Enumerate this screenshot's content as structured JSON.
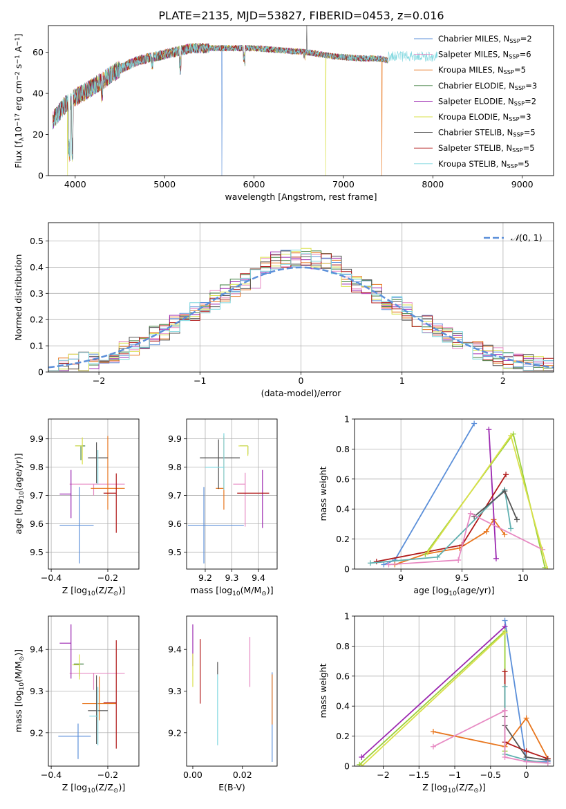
{
  "title": "PLATE=2135, MJD=53827, FIBERID=0453, z=0.016",
  "colors": {
    "Chabrier MILES": "#5b8fd9",
    "Salpeter MILES": "#e78ac3",
    "Kroupa MILES": "#e8761e",
    "Chabrier ELODIE": "#3f7d3f",
    "Salpeter ELODIE": "#9b27b0",
    "Kroupa ELODIE": "#d9e04a",
    "Chabrier STELIB": "#555555",
    "Salpeter STELIB": "#b01818",
    "Kroupa STELIB": "#7fd7df",
    "mass_weight_lines": [
      "#5b8fd9",
      "#e8761e",
      "#9b27b0",
      "#9bd13a",
      "#b01818",
      "#5fb0b0",
      "#555555",
      "#e78ac3",
      "#d9e04a"
    ]
  },
  "legend1": [
    "Chabrier MILES, N$_{SSP}$=2",
    "Salpeter MILES, N$_{SSP}$=6",
    "Kroupa MILES, N$_{SSP}$=5",
    "Chabrier ELODIE, N$_{SSP}$=3",
    "Salpeter ELODIE, N$_{SSP}$=2",
    "Kroupa ELODIE, N$_{SSP}$=3",
    "Chabrier STELIB, N$_{SSP}$=5",
    "Salpeter STELIB, N$_{SSP}$=5",
    "Kroupa STELIB, N$_{SSP}$=5"
  ],
  "chart_data": [
    {
      "id": "spectrum",
      "type": "line",
      "xlabel": "wavelength [Angstrom, rest frame]",
      "ylabel": "Flux [f$_\\lambda$10$^{-17}$ erg cm$^{-2}$ s$^{-1}$ A$^{-1}$]",
      "xlim": [
        3700,
        9350
      ],
      "ylim": [
        0,
        73
      ],
      "xticks": [
        4000,
        5000,
        6000,
        7000,
        8000,
        9000
      ],
      "yticks": [
        0,
        20,
        40,
        60
      ],
      "continuum": [
        [
          3750,
          27
        ],
        [
          3900,
          35
        ],
        [
          4000,
          38
        ],
        [
          4150,
          42
        ],
        [
          4300,
          46
        ],
        [
          4500,
          52
        ],
        [
          4700,
          56
        ],
        [
          5000,
          59
        ],
        [
          5300,
          62
        ],
        [
          5600,
          62
        ],
        [
          6000,
          62
        ],
        [
          6300,
          61
        ],
        [
          6600,
          60
        ],
        [
          6900,
          58
        ],
        [
          7200,
          57
        ],
        [
          7400,
          57
        ],
        [
          7500,
          56
        ]
      ],
      "dips": [
        [
          3933,
          10
        ],
        [
          3968,
          10
        ],
        [
          4300,
          38
        ],
        [
          4861,
          52
        ],
        [
          5175,
          50
        ],
        [
          5890,
          54
        ],
        [
          6563,
          57
        ]
      ],
      "spikes": [
        {
          "series": "Chabrier MILES",
          "x": 5640,
          "y": 0
        },
        {
          "series": "Kroupa MILES",
          "x": 7430,
          "y": 0
        },
        {
          "series": "Kroupa ELODIE",
          "x": 6800,
          "y": 0
        },
        {
          "series": "Kroupa ELODIE",
          "x": 3915,
          "y": 0
        },
        {
          "series": "Chabrier STELIB",
          "x": 6590,
          "y": 73
        }
      ],
      "tail": {
        "series": "Kroupa STELIB",
        "from": 7500,
        "to": 8050
      },
      "grid": false,
      "legend_position": "top-right"
    },
    {
      "id": "residuals",
      "type": "histogram",
      "xlabel": "(data-model)/error",
      "ylabel": "Normed distribution",
      "xlim": [
        -2.5,
        2.5
      ],
      "ylim": [
        0,
        0.57
      ],
      "xticks": [
        -2,
        -1,
        0,
        1,
        2
      ],
      "yticks": [
        0.0,
        0.1,
        0.2,
        0.3,
        0.4,
        0.5
      ],
      "bin_width": 0.1,
      "gaussian_label": "$\\mathcal{N}(0,1)$",
      "gaussian_color": "#5b8fd9",
      "grid": true,
      "legend_position": "top-right"
    },
    {
      "id": "age-vs-Z",
      "type": "errorbar",
      "xlabel": "Z [log$_{10}$(Z/Z$_\\odot$)]",
      "ylabel": "age  [log$_{10}$(age/yr)]",
      "xlim": [
        -0.41,
        -0.09
      ],
      "ylim": [
        9.44,
        9.97
      ],
      "xticks": [
        -0.4,
        -0.2
      ],
      "yticks": [
        9.5,
        9.6,
        9.7,
        9.8,
        9.9
      ],
      "grid": true,
      "points": [
        {
          "series": "Chabrier MILES",
          "x": -0.3,
          "xerr": [
            0.07,
            0.05
          ],
          "y": 9.595,
          "yerr": [
            0.135,
            0.135
          ]
        },
        {
          "series": "Salpeter MILES",
          "x": -0.25,
          "xerr": [
            0.085,
            0.11
          ],
          "y": 9.74,
          "yerr": [
            0.04,
            0.0
          ]
        },
        {
          "series": "Kroupa MILES",
          "x": -0.2,
          "xerr": [
            0.06,
            0.06
          ],
          "y": 9.725,
          "yerr": [
            0.075,
            0.185
          ]
        },
        {
          "series": "Chabrier ELODIE",
          "x": -0.295,
          "xerr": [
            0.02,
            0.015
          ],
          "y": 9.875,
          "yerr": [
            0.05,
            0.0
          ]
        },
        {
          "series": "Salpeter ELODIE",
          "x": -0.33,
          "xerr": [
            0.04,
            0.0
          ],
          "y": 9.705,
          "yerr": [
            0.085,
            0.085
          ]
        },
        {
          "series": "Kroupa ELODIE",
          "x": -0.29,
          "xerr": [
            0.025,
            0.0
          ],
          "y": 9.875,
          "yerr": [
            0.065,
            0.03
          ]
        },
        {
          "series": "Chabrier STELIB",
          "x": -0.24,
          "xerr": [
            0.03,
            0.04
          ],
          "y": 9.833,
          "yerr": [
            0.09,
            0.055
          ]
        },
        {
          "series": "Salpeter STELIB",
          "x": -0.17,
          "xerr": [
            0.045,
            0.0
          ],
          "y": 9.708,
          "yerr": [
            0.14,
            0.07
          ]
        },
        {
          "series": "Kroupa STELIB",
          "x": -0.235,
          "xerr": [
            0.0,
            0.0
          ],
          "y": 9.8,
          "yerr": [
            0.06,
            0.06
          ]
        }
      ]
    },
    {
      "id": "age-vs-mass",
      "type": "errorbar",
      "xlabel": "mass [log$_{10}$(M/M$_\\odot$)]",
      "ylabel": "",
      "xlim": [
        9.13,
        9.47
      ],
      "ylim": [
        9.44,
        9.97
      ],
      "xticks": [
        9.2,
        9.3,
        9.4
      ],
      "yticks": [
        9.5,
        9.6,
        9.7,
        9.8,
        9.9
      ],
      "grid": true,
      "points": [
        {
          "series": "Chabrier MILES",
          "x": 9.195,
          "xerr": [
            0.06,
            0.15
          ],
          "y": 9.595,
          "yerr": [
            0.135,
            0.135
          ]
        },
        {
          "series": "Salpeter MILES",
          "x": 9.35,
          "xerr": [
            0.045,
            0.0
          ],
          "y": 9.74,
          "yerr": [
            0.15,
            0.04
          ]
        },
        {
          "series": "Kroupa MILES",
          "x": 9.27,
          "xerr": [
            0.03,
            0.0
          ],
          "y": 9.725,
          "yerr": [
            0.075,
            0.185
          ]
        },
        {
          "series": "Chabrier ELODIE",
          "x": 9.36,
          "xerr": [
            0.03,
            0.0
          ],
          "y": 9.875,
          "yerr": [
            0.03,
            0.0
          ]
        },
        {
          "series": "Salpeter ELODIE",
          "x": 9.415,
          "xerr": [
            0.0,
            0.0
          ],
          "y": 9.705,
          "yerr": [
            0.12,
            0.085
          ]
        },
        {
          "series": "Kroupa ELODIE",
          "x": 9.36,
          "xerr": [
            0.035,
            0.0
          ],
          "y": 9.875,
          "yerr": [
            0.035,
            0.0
          ]
        },
        {
          "series": "Chabrier STELIB",
          "x": 9.25,
          "xerr": [
            0.07,
            0.08
          ],
          "y": 9.833,
          "yerr": [
            0.11,
            0.065
          ]
        },
        {
          "series": "Salpeter STELIB",
          "x": 9.37,
          "xerr": [
            0.05,
            0.07
          ],
          "y": 9.708,
          "yerr": [
            0.0,
            0.0
          ]
        },
        {
          "series": "Kroupa STELIB",
          "x": 9.27,
          "xerr": [
            0.07,
            0.0
          ],
          "y": 9.8,
          "yerr": [
            0.08,
            0.12
          ]
        }
      ]
    },
    {
      "id": "weight-vs-age",
      "type": "line",
      "xlabel": "age  [log$_{10}$(age/yr)]",
      "ylabel": "mass weight",
      "xlim": [
        8.62,
        10.25
      ],
      "ylim": [
        0,
        1.0
      ],
      "xticks": [
        9.0,
        9.5,
        10.0
      ],
      "yticks": [
        0.0,
        0.2,
        0.4,
        0.6,
        0.8,
        1.0
      ],
      "grid": true,
      "series": [
        {
          "points": [
            [
              8.86,
              0.03
            ],
            [
              8.95,
              0.06
            ],
            [
              9.6,
              0.97
            ]
          ]
        },
        {
          "points": [
            [
              8.95,
              0.03
            ],
            [
              9.2,
              0.1
            ],
            [
              9.48,
              0.14
            ],
            [
              9.7,
              0.25
            ],
            [
              9.76,
              0.33
            ],
            [
              9.85,
              0.23
            ]
          ]
        },
        {
          "points": [
            [
              9.72,
              0.93
            ],
            [
              9.78,
              0.07
            ]
          ]
        },
        {
          "points": [
            [
              9.2,
              0.1
            ],
            [
              9.92,
              0.9
            ],
            [
              10.18,
              0.01
            ]
          ]
        },
        {
          "points": [
            [
              8.8,
              0.05
            ],
            [
              9.5,
              0.16
            ],
            [
              9.86,
              0.63
            ]
          ]
        },
        {
          "points": [
            [
              8.75,
              0.04
            ],
            [
              9.3,
              0.08
            ],
            [
              9.85,
              0.53
            ],
            [
              9.9,
              0.27
            ]
          ]
        },
        {
          "points": [
            [
              9.6,
              0.35
            ],
            [
              9.85,
              0.52
            ],
            [
              9.95,
              0.33
            ]
          ]
        },
        {
          "points": [
            [
              8.9,
              0.03
            ],
            [
              9.47,
              0.06
            ],
            [
              9.57,
              0.37
            ],
            [
              10.16,
              0.13
            ]
          ]
        },
        {
          "points": [
            [
              9.22,
              0.11
            ],
            [
              9.9,
              0.89
            ],
            [
              10.2,
              0.0
            ]
          ]
        }
      ]
    },
    {
      "id": "mass-vs-Z",
      "type": "errorbar",
      "xlabel": "Z [log$_{10}$(Z/Z$_\\odot$)]",
      "ylabel": "mass [log$_{10}$(M/M$_\\odot$)]",
      "xlim": [
        -0.41,
        -0.09
      ],
      "ylim": [
        9.12,
        9.48
      ],
      "xticks": [
        -0.4,
        -0.2
      ],
      "yticks": [
        9.2,
        9.3,
        9.4
      ],
      "grid": true,
      "points": [
        {
          "series": "Chabrier MILES",
          "x": -0.305,
          "xerr": [
            0.07,
            0.045
          ],
          "y": 9.192,
          "yerr": [
            0.055,
            0.03
          ]
        },
        {
          "series": "Salpeter MILES",
          "x": -0.25,
          "xerr": [
            0.085,
            0.11
          ],
          "y": 9.343,
          "yerr": [
            0.04,
            0.0
          ]
        },
        {
          "series": "Kroupa MILES",
          "x": -0.23,
          "xerr": [
            0.06,
            0.06
          ],
          "y": 9.27,
          "yerr": [
            0.04,
            0.065
          ]
        },
        {
          "series": "Chabrier ELODIE",
          "x": -0.3,
          "xerr": [
            0.02,
            0.015
          ],
          "y": 9.365,
          "yerr": [
            0.03,
            0.0
          ]
        },
        {
          "series": "Salpeter ELODIE",
          "x": -0.33,
          "xerr": [
            0.04,
            0.0
          ],
          "y": 9.415,
          "yerr": [
            0.085,
            0.045
          ]
        },
        {
          "series": "Kroupa ELODIE",
          "x": -0.3,
          "xerr": [
            0.025,
            0.0
          ],
          "y": 9.363,
          "yerr": [
            0.035,
            0.025
          ]
        },
        {
          "series": "Chabrier STELIB",
          "x": -0.24,
          "xerr": [
            0.03,
            0.04
          ],
          "y": 9.253,
          "yerr": [
            0.08,
            0.085
          ]
        },
        {
          "series": "Salpeter STELIB",
          "x": -0.17,
          "xerr": [
            0.045,
            0.0
          ],
          "y": 9.272,
          "yerr": [
            0.11,
            0.15
          ]
        },
        {
          "series": "Kroupa STELIB",
          "x": -0.235,
          "xerr": [
            0.03,
            0.0
          ],
          "y": 9.24,
          "yerr": [
            0.07,
            0.07
          ]
        }
      ]
    },
    {
      "id": "mass-vs-ebv",
      "type": "errorbar",
      "xlabel": "E(B-V)",
      "ylabel": "",
      "xlim": [
        -0.0025,
        0.034
      ],
      "ylim": [
        9.12,
        9.48
      ],
      "xticks": [
        0.0,
        0.02
      ],
      "xticklabels": [
        "0.00",
        "0.02"
      ],
      "yticks": [
        9.2,
        9.3,
        9.4
      ],
      "grid": false,
      "points": [
        {
          "series": "Chabrier MILES",
          "x": 0.032,
          "y": 9.22,
          "yerr": [
            0.09,
            0.125
          ]
        },
        {
          "series": "Salpeter MILES",
          "x": 0.023,
          "y": 9.37,
          "yerr": [
            0.06,
            0.06
          ]
        },
        {
          "series": "Kroupa MILES",
          "x": 0.032,
          "y": 9.28,
          "yerr": [
            0.06,
            0.06
          ]
        },
        {
          "series": "Salpeter ELODIE",
          "x": 0.0,
          "y": 9.41,
          "yerr": [
            0.05,
            0.05
          ]
        },
        {
          "series": "Kroupa ELODIE",
          "x": 0.0,
          "y": 9.35,
          "yerr": [
            0.04,
            0.04
          ]
        },
        {
          "series": "Chabrier STELIB",
          "x": 0.01,
          "y": 9.34,
          "yerr": [
            0.0,
            0.03
          ]
        },
        {
          "series": "Salpeter STELIB",
          "x": 0.003,
          "y": 9.35,
          "yerr": [
            0.08,
            0.075
          ]
        },
        {
          "series": "Kroupa STELIB",
          "x": 0.01,
          "y": 9.26,
          "yerr": [
            0.09,
            0.08
          ]
        }
      ]
    },
    {
      "id": "weight-vs-Z",
      "type": "line",
      "xlabel": "Z [log$_{10}$(Z/Z$_\\odot$)]",
      "ylabel": "mass weight",
      "xlim": [
        -2.4,
        0.38
      ],
      "ylim": [
        0,
        1.0
      ],
      "xticks": [
        -2.0,
        -1.5,
        -1.0,
        -0.5,
        0.0
      ],
      "yticks": [
        0.0,
        0.2,
        0.4,
        0.6,
        0.8,
        1.0
      ],
      "grid": true,
      "series": [
        {
          "points": [
            [
              -0.3,
              0.97
            ],
            [
              0.0,
              0.03
            ],
            [
              0.3,
              0.03
            ]
          ]
        },
        {
          "points": [
            [
              -1.3,
              0.23
            ],
            [
              -0.3,
              0.13
            ],
            [
              0.0,
              0.32
            ],
            [
              0.3,
              0.05
            ]
          ]
        },
        {
          "points": [
            [
              -2.3,
              0.06
            ],
            [
              -0.3,
              0.93
            ]
          ]
        },
        {
          "points": [
            [
              -2.33,
              0.01
            ],
            [
              -0.3,
              0.9
            ],
            [
              -0.3,
              0.1
            ]
          ]
        },
        {
          "points": [
            [
              -0.3,
              0.63
            ],
            [
              -0.3,
              0.16
            ],
            [
              0.0,
              0.1
            ],
            [
              0.3,
              0.05
            ]
          ]
        },
        {
          "points": [
            [
              -0.3,
              0.53
            ],
            [
              -0.3,
              0.08
            ],
            [
              0.0,
              0.04
            ],
            [
              0.3,
              0.02
            ]
          ]
        },
        {
          "points": [
            [
              -0.3,
              0.33
            ],
            [
              -0.3,
              0.27
            ],
            [
              0.0,
              0.06
            ],
            [
              0.3,
              0.04
            ]
          ]
        },
        {
          "points": [
            [
              -1.3,
              0.13
            ],
            [
              -0.3,
              0.37
            ],
            [
              -0.3,
              0.06
            ],
            [
              0.0,
              0.03
            ],
            [
              0.3,
              0.02
            ]
          ]
        },
        {
          "points": [
            [
              -2.3,
              0.0
            ],
            [
              -0.3,
              0.89
            ]
          ]
        }
      ]
    }
  ]
}
